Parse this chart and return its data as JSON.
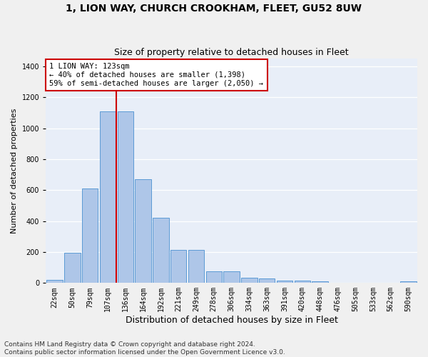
{
  "title1": "1, LION WAY, CHURCH CROOKHAM, FLEET, GU52 8UW",
  "title2": "Size of property relative to detached houses in Fleet",
  "xlabel": "Distribution of detached houses by size in Fleet",
  "ylabel": "Number of detached properties",
  "footnote": "Contains HM Land Registry data © Crown copyright and database right 2024.\nContains public sector information licensed under the Open Government Licence v3.0.",
  "bar_labels": [
    "22sqm",
    "50sqm",
    "79sqm",
    "107sqm",
    "136sqm",
    "164sqm",
    "192sqm",
    "221sqm",
    "249sqm",
    "278sqm",
    "306sqm",
    "334sqm",
    "363sqm",
    "391sqm",
    "420sqm",
    "448sqm",
    "476sqm",
    "505sqm",
    "533sqm",
    "562sqm",
    "590sqm"
  ],
  "bar_values": [
    20,
    195,
    610,
    1110,
    1110,
    670,
    420,
    215,
    215,
    75,
    75,
    35,
    30,
    15,
    15,
    10,
    0,
    0,
    0,
    0,
    10
  ],
  "bar_color": "#aec6e8",
  "bar_edgecolor": "#5b9bd5",
  "bg_color": "#e8eef8",
  "fig_color": "#f0f0f0",
  "grid_color": "#ffffff",
  "vline_color": "#cc0000",
  "vline_x": 3.5,
  "ylim": [
    0,
    1450
  ],
  "yticks": [
    0,
    200,
    400,
    600,
    800,
    1000,
    1200,
    1400
  ],
  "annotation_text": "1 LION WAY: 123sqm\n← 40% of detached houses are smaller (1,398)\n59% of semi-detached houses are larger (2,050) →",
  "annotation_box_edgecolor": "#cc0000",
  "annotation_fontsize": 7.5,
  "title1_fontsize": 10,
  "title2_fontsize": 9,
  "xlabel_fontsize": 9,
  "ylabel_fontsize": 8,
  "tick_fontsize": 7,
  "footnote_fontsize": 6.5
}
